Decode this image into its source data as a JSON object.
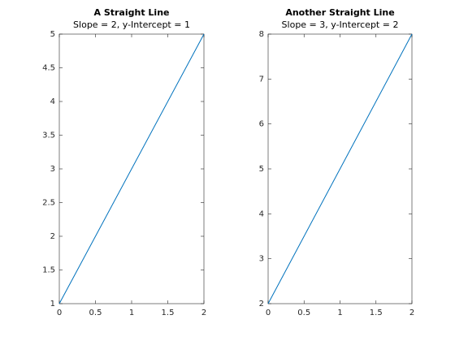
{
  "chart_data": [
    {
      "type": "line",
      "title": "A Straight Line",
      "subtitle": "Slope = 2, y-Intercept = 1",
      "x": [
        0,
        2
      ],
      "series": [
        {
          "color": "#0072bd",
          "values": [
            1,
            5
          ]
        }
      ],
      "xlim": [
        0,
        2
      ],
      "xticks": [
        0,
        0.5,
        1,
        1.5,
        2
      ],
      "ylim": [
        1,
        5
      ],
      "yticks": [
        1,
        1.5,
        2,
        2.5,
        3,
        3.5,
        4,
        4.5,
        5
      ]
    },
    {
      "type": "line",
      "title": "Another Straight Line",
      "subtitle": "Slope = 3, y-Intercept = 2",
      "x": [
        0,
        2
      ],
      "series": [
        {
          "color": "#0072bd",
          "values": [
            2,
            8
          ]
        }
      ],
      "xlim": [
        0,
        2
      ],
      "xticks": [
        0,
        0.5,
        1,
        1.5,
        2
      ],
      "ylim": [
        2,
        8
      ],
      "yticks": [
        2,
        3,
        4,
        5,
        6,
        7,
        8
      ]
    }
  ]
}
